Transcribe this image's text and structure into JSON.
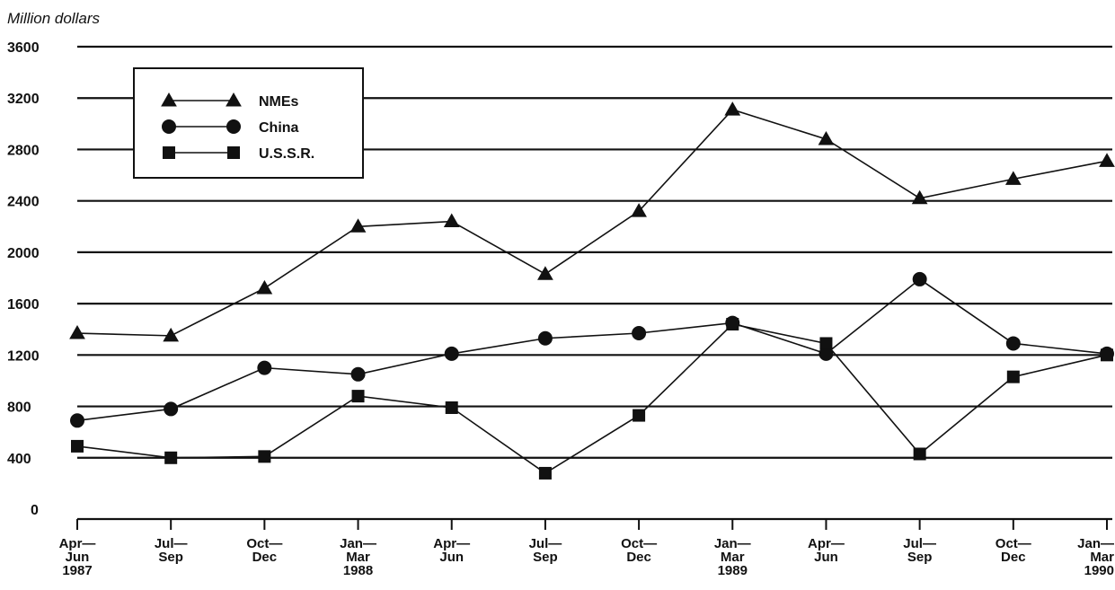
{
  "chart_data": {
    "type": "line",
    "title": "",
    "ylabel": "Million dollars",
    "xlabel": "",
    "ylim": [
      0,
      3600
    ],
    "yticks": [
      0,
      400,
      800,
      1200,
      1600,
      2000,
      2400,
      2800,
      3200,
      3600
    ],
    "grid": true,
    "legend_position": "top-left",
    "categories": [
      [
        "Apr—",
        "Jun",
        "1987"
      ],
      [
        "Jul—",
        "Sep"
      ],
      [
        "Oct—",
        "Dec"
      ],
      [
        "Jan—",
        "Mar",
        "1988"
      ],
      [
        "Apr—",
        "Jun"
      ],
      [
        "Jul—",
        "Sep"
      ],
      [
        "Oct—",
        "Dec"
      ],
      [
        "Jan—",
        "Mar",
        "1989"
      ],
      [
        "Apr—",
        "Jun"
      ],
      [
        "Jul—",
        "Sep"
      ],
      [
        "Oct—",
        "Dec"
      ],
      [
        "Jan—",
        "Mar",
        "1990"
      ]
    ],
    "series": [
      {
        "name": "NMEs",
        "marker": "triangle",
        "values": [
          1370,
          1350,
          1720,
          2200,
          2240,
          1830,
          2320,
          3110,
          2880,
          2420,
          2570,
          2710
        ]
      },
      {
        "name": "China",
        "marker": "circle",
        "values": [
          690,
          780,
          1100,
          1050,
          1210,
          1330,
          1370,
          1450,
          1210,
          1790,
          1290,
          1210
        ]
      },
      {
        "name": "U.S.S.R.",
        "marker": "square",
        "values": [
          490,
          400,
          410,
          880,
          790,
          280,
          730,
          1440,
          1290,
          430,
          1030,
          1200
        ]
      }
    ]
  }
}
